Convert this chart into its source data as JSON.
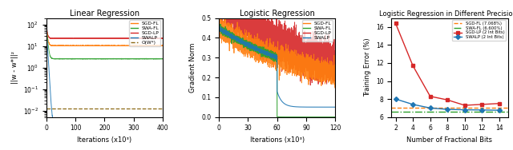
{
  "plot1": {
    "title": "Linear Regression",
    "xlabel": "Iterations (x10³)",
    "ylabel": "||w - w*||²",
    "xlim": [
      0,
      400
    ],
    "legend": [
      "SGD-FL",
      "SWA-FL",
      "SGD-LP",
      "SWALP",
      "O(W*)"
    ],
    "colors": {
      "SGD-FL": "#ff7f0e",
      "SWA-FL": "#2ca02c",
      "SGD-LP": "#d62728",
      "SWALP": "#1f77b4",
      "OW": "#8B6914"
    },
    "OW_level": 0.012,
    "sgd_fl_plateau": 10.0,
    "swa_fl_plateau": 2.5,
    "sgd_lp_plateau": 22.0,
    "swalp_final": 0.003
  },
  "plot2": {
    "title": "Logistic Regression",
    "xlabel": "Iterations (x10³)",
    "ylabel": "Gradient Norm",
    "xlim": [
      0,
      120
    ],
    "ylim": [
      0.0,
      0.5
    ],
    "legend": [
      "SGD-FL",
      "SWA-FL",
      "SGD-LP",
      "SWALP"
    ],
    "colors": {
      "SGD-FL": "#ff7f0e",
      "SWA-FL": "#2ca02c",
      "SGD-LP": "#d62728",
      "SWALP": "#1f77b4"
    },
    "swa_switch": 60,
    "sgd_fl_start": 0.33,
    "sgd_fl_end": 0.15,
    "sgd_lp_start": 0.45,
    "sgd_lp_end": 0.2,
    "swalp_after_drop": 0.05
  },
  "plot3": {
    "title": "Logistic Regression in Different Precisions",
    "xlabel": "Number of Fractional Bits",
    "ylabel": "Training Error (%)",
    "xlim": [
      1.5,
      15
    ],
    "ylim": [
      6,
      17
    ],
    "frac_bits": [
      2,
      4,
      6,
      8,
      10,
      12,
      14
    ],
    "SGD_LP": [
      16.4,
      11.7,
      8.3,
      7.9,
      7.3,
      7.4,
      7.5
    ],
    "SWALP": [
      8.0,
      7.4,
      7.0,
      6.85,
      6.8,
      6.78,
      6.75
    ],
    "SGD_FL_level": 7.068,
    "SWA_FL_level": 6.6,
    "legend_labels": [
      "SGD-FL (7.068%)",
      "SWA-FL (6.600%)",
      "SGD-LP (2 Int Bits)",
      "SWALP (2 Int Bits)"
    ],
    "colors": {
      "SGD-FL": "#ff7f0e",
      "SWA-FL": "#2ca02c",
      "SGD-LP": "#d62728",
      "SWALP": "#1f77b4"
    }
  }
}
